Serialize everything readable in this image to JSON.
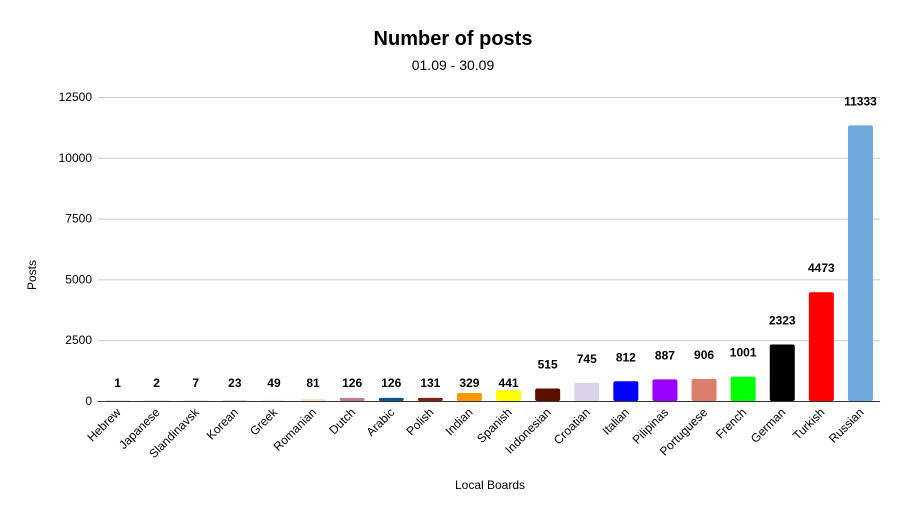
{
  "chart_data": {
    "type": "bar",
    "title": "Number of posts",
    "subtitle": "01.09 - 30.09",
    "xlabel": "Local Boards",
    "ylabel": "Posts",
    "ylim": [
      0,
      12500
    ],
    "yticks": [
      0,
      2500,
      5000,
      7500,
      10000,
      12500
    ],
    "grid": true,
    "legend": "none",
    "categories": [
      "Hebrew",
      "Japanese",
      "Slandinavsk",
      "Korean",
      "Greek",
      "Romanian",
      "Dutch",
      "Arabic",
      "Polish",
      "Indian",
      "Spanish",
      "Indonesian",
      "Croatian",
      "Italian",
      "Pilipinas",
      "Portuguese",
      "French",
      "German",
      "Turkish",
      "Russian"
    ],
    "values": [
      1,
      2,
      7,
      23,
      49,
      81,
      126,
      126,
      131,
      329,
      441,
      515,
      745,
      812,
      887,
      906,
      1001,
      2323,
      4473,
      11333
    ],
    "colors": [
      "#e8e8e8",
      "#e8e8e8",
      "#e8e8e8",
      "#c8e6c9",
      "#e3f2fd",
      "#fde0c5",
      "#c27ba0",
      "#0b5394",
      "#85200c",
      "#ff9900",
      "#ffff00",
      "#5b0f00",
      "#d9d2e9",
      "#0000ff",
      "#9900ff",
      "#dd7e6b",
      "#00ff00",
      "#000000",
      "#ff0000",
      "#6fa8dc"
    ]
  }
}
